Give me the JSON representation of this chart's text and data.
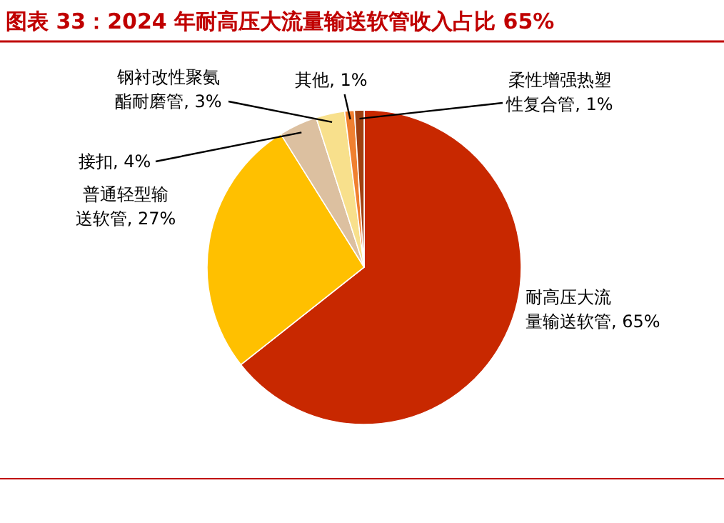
{
  "chart_data": {
    "type": "pie",
    "title": "图表 33：2024 年耐高压大流量输送软管收入占比 65%",
    "categories": [
      "耐高压大流量输送软管",
      "普通轻型输送软管",
      "接扣",
      "钢衬改性聚氨酯耐磨管",
      "其他",
      "柔性增强热塑性复合管"
    ],
    "values": [
      65,
      27,
      4,
      3,
      1,
      1
    ],
    "value_labels": [
      "65%",
      "27%",
      "4%",
      "3%",
      "1%",
      "1%"
    ],
    "colors": [
      "#c82800",
      "#ffc000",
      "#dcc0a0",
      "#f8e08c",
      "#f08030",
      "#a04010"
    ]
  }
}
